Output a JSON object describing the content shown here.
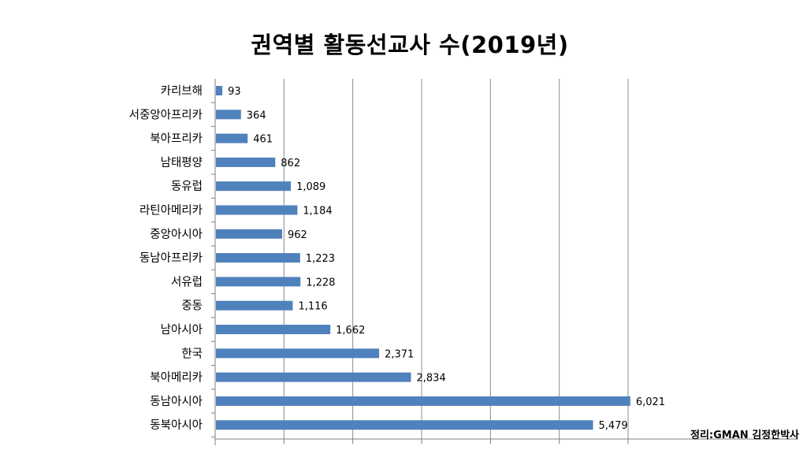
{
  "chart_data": {
    "type": "bar",
    "orientation": "horizontal",
    "title": "권역별  활동선교사 수(2019년)",
    "categories": [
      "카리브해",
      "서중앙아프리카",
      "북아프리카",
      "남태평양",
      "동유럽",
      "라틴아메리카",
      "중앙아시아",
      "동남아프리카",
      "서유럽",
      "중동",
      "남아시아",
      "한국",
      "북아메리카",
      "동남아시아",
      "동북아시아"
    ],
    "values": [
      93,
      364,
      461,
      862,
      1089,
      1184,
      962,
      1223,
      1228,
      1116,
      1662,
      2371,
      2834,
      6021,
      5479
    ],
    "data_labels": [
      "93",
      "364",
      "461",
      "862",
      "1,089",
      "1,184",
      "962",
      "1,223",
      "1,228",
      "1,116",
      "1,662",
      "2,371",
      "2,834",
      "6,021",
      "5,479"
    ],
    "xlim": [
      0,
      6000
    ],
    "x_gridlines": [
      0,
      1000,
      2000,
      3000,
      4000,
      5000,
      6000
    ],
    "grid": true,
    "legend": "none",
    "bar_color": "#4f81bd"
  },
  "source_note": "정리:GMAN 김정한박사"
}
